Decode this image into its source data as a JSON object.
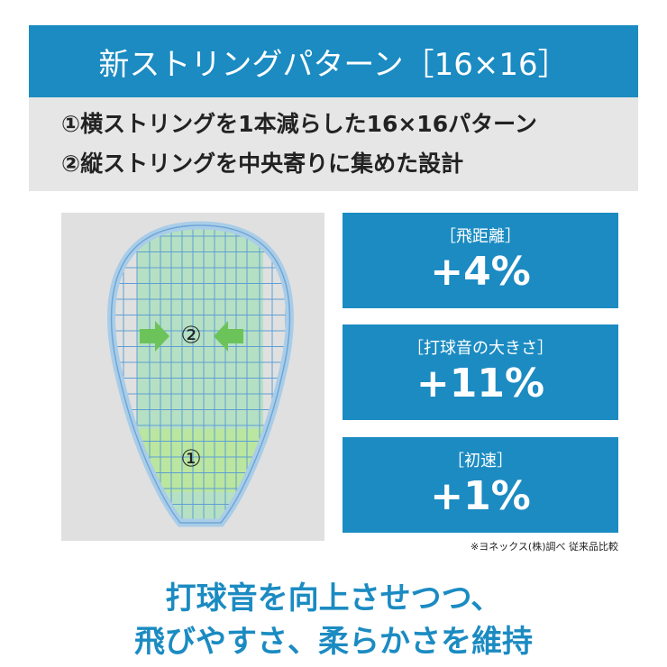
{
  "header": {
    "title": "新ストリングパターン［16×16］"
  },
  "features": [
    "①横ストリングを1本減らした16×16パターン",
    "②縦ストリングを中央寄りに集めた設計"
  ],
  "diagram": {
    "labels": [
      "②",
      "①"
    ]
  },
  "stats": [
    {
      "label": "［飛距離］",
      "value": "+4%"
    },
    {
      "label": "［打球音の大きさ］",
      "value": "+11%"
    },
    {
      "label": "［初速］",
      "value": "+1%"
    }
  ],
  "note": "※ヨネックス(株)調べ 従来品比較",
  "footer": [
    "打球音を向上させつつ、",
    "飛びやすさ、柔らかさを維持"
  ]
}
